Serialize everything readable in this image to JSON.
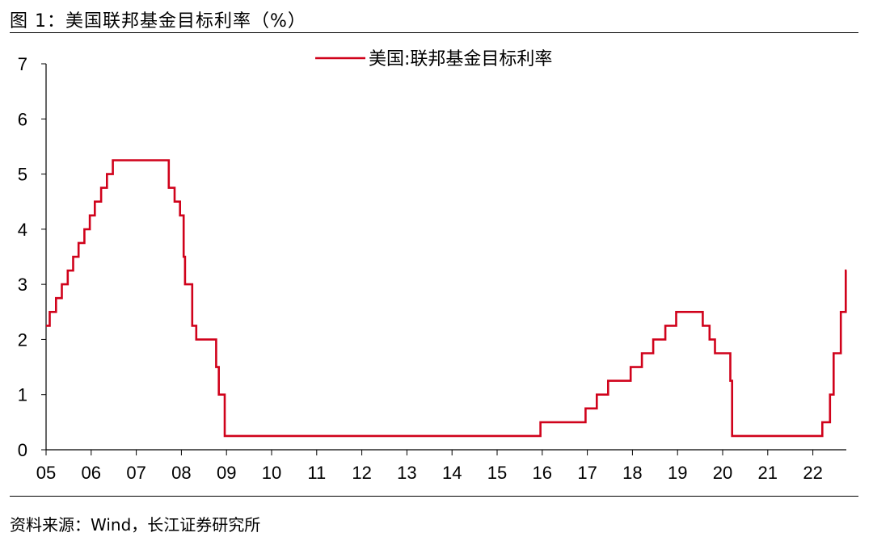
{
  "figure": {
    "title": "图 1：美国联邦基金目标利率（%）",
    "source": "资料来源：Wind，长江证券研究所"
  },
  "chart_data": {
    "type": "line",
    "step": true,
    "x_unit": "year",
    "ylim": [
      0,
      7
    ],
    "xlim": [
      2005.0,
      2022.75
    ],
    "y_ticks": [
      "0",
      "1",
      "2",
      "3",
      "4",
      "5",
      "6",
      "7"
    ],
    "x_ticks": [
      "05",
      "06",
      "07",
      "08",
      "09",
      "10",
      "11",
      "12",
      "13",
      "14",
      "15",
      "16",
      "17",
      "18",
      "19",
      "20",
      "21",
      "22"
    ],
    "grid": false,
    "legend_position": "top-center",
    "series": [
      {
        "name": "美国:联邦基金目标利率",
        "color": "#d0021b",
        "x": [
          2005.0,
          2005.08,
          2005.22,
          2005.35,
          2005.48,
          2005.6,
          2005.72,
          2005.85,
          2005.97,
          2006.08,
          2006.22,
          2006.35,
          2006.48,
          2007.72,
          2007.85,
          2007.97,
          2008.05,
          2008.08,
          2008.24,
          2008.33,
          2008.77,
          2008.83,
          2008.96,
          2015.96,
          2016.96,
          2017.21,
          2017.46,
          2017.96,
          2018.21,
          2018.46,
          2018.73,
          2018.97,
          2019.56,
          2019.71,
          2019.83,
          2019.96,
          2020.17,
          2020.21,
          2022.21,
          2022.38,
          2022.46,
          2022.62,
          2022.73,
          2022.75
        ],
        "y": [
          2.25,
          2.5,
          2.75,
          3.0,
          3.25,
          3.5,
          3.75,
          4.0,
          4.25,
          4.5,
          4.75,
          5.0,
          5.25,
          4.75,
          4.5,
          4.25,
          3.5,
          3.0,
          2.25,
          2.0,
          1.5,
          1.0,
          0.25,
          0.5,
          0.75,
          1.0,
          1.25,
          1.5,
          1.75,
          2.0,
          2.25,
          2.5,
          2.25,
          2.0,
          1.75,
          1.75,
          1.25,
          0.25,
          0.5,
          1.0,
          1.75,
          2.5,
          3.25,
          3.25
        ]
      }
    ]
  }
}
